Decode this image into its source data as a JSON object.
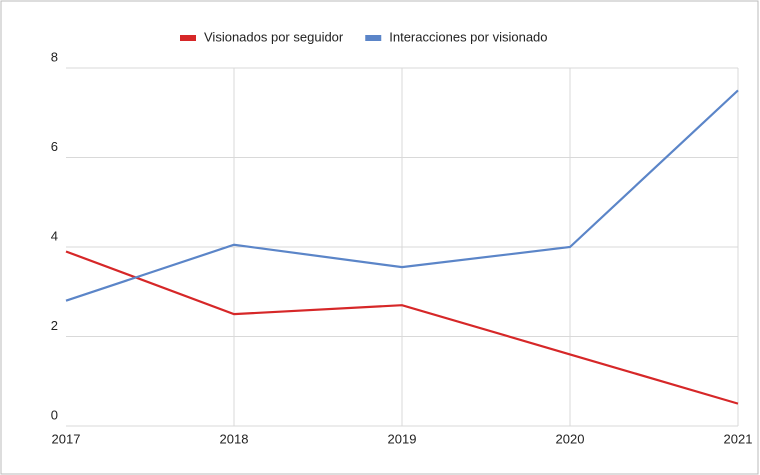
{
  "chart_data": {
    "type": "line",
    "categories": [
      "2017",
      "2018",
      "2019",
      "2020",
      "2021"
    ],
    "series": [
      {
        "name": "Visionados por seguidor",
        "color": "#d62728",
        "values": [
          3.9,
          2.5,
          2.7,
          1.6,
          0.5
        ]
      },
      {
        "name": "Interacciones por visionado",
        "color": "#5b85c8",
        "values": [
          2.8,
          4.05,
          3.55,
          4.0,
          7.5
        ]
      }
    ],
    "ylim": [
      0,
      8
    ],
    "yticks": [
      0,
      2,
      4,
      6,
      8
    ],
    "grid": true,
    "legend": "top"
  }
}
